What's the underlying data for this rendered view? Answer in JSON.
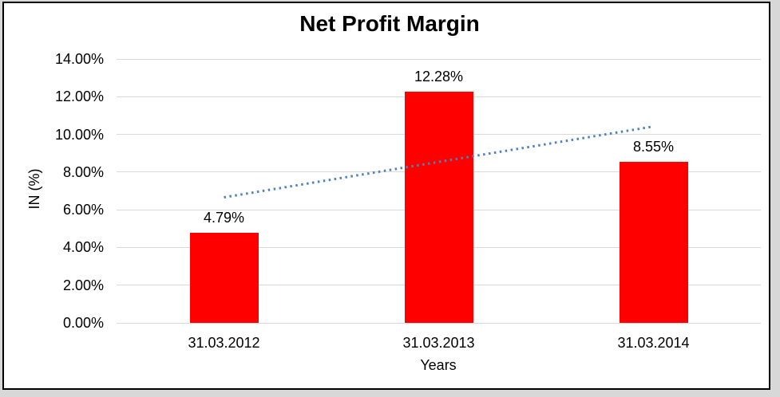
{
  "frame": {
    "background": "#ffffff",
    "border_color": "#000000",
    "outer_background": "#d8d8d8"
  },
  "chart_data": {
    "type": "bar",
    "title": "Net Profit Margin",
    "xlabel": "Years",
    "ylabel": "IN (%)",
    "categories": [
      "31.03.2012",
      "31.03.2013",
      "31.03.2014"
    ],
    "values": [
      4.79,
      12.28,
      8.55
    ],
    "value_labels": [
      "4.79%",
      "12.28%",
      "8.55%"
    ],
    "ylim": [
      0,
      14
    ],
    "ytick_step": 2,
    "ytick_labels": [
      "0.00%",
      "2.00%",
      "4.00%",
      "6.00%",
      "8.00%",
      "10.00%",
      "12.00%",
      "14.00%"
    ],
    "grid": true,
    "legend": "none",
    "bar_color": "#ff0000",
    "gridline_color": "#d9d9d9",
    "text_color": "#000000",
    "trendline": {
      "type": "linear",
      "style": "dotted",
      "color": "#4f81bd",
      "start_value": 6.66,
      "end_value": 10.42
    }
  }
}
